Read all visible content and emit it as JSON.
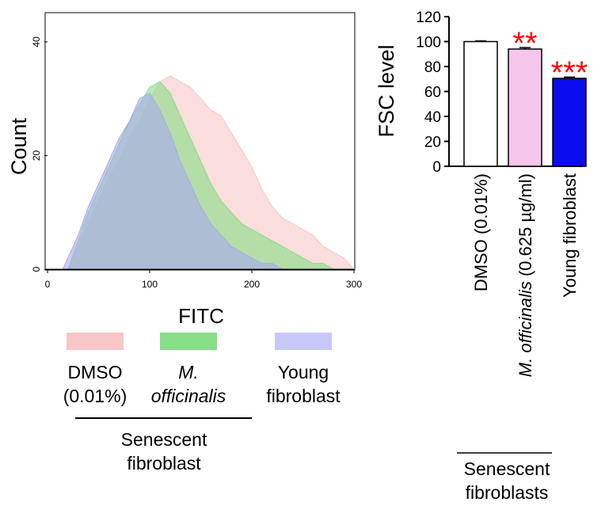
{
  "chart_data": [
    {
      "type": "area",
      "title": "",
      "xlabel": "FITC",
      "ylabel": "Count",
      "xlim": [
        0,
        300
      ],
      "ylim": [
        0,
        45
      ],
      "xticks": [
        "0",
        "100",
        "200",
        "300"
      ],
      "yticks": [
        "0",
        "20",
        "40"
      ],
      "series": [
        {
          "name": "DMSO (0.01%)",
          "color": "#f7c6c6",
          "x": [
            20,
            30,
            40,
            50,
            60,
            70,
            80,
            90,
            100,
            110,
            120,
            130,
            140,
            150,
            160,
            170,
            180,
            190,
            200,
            210,
            220,
            230,
            240,
            250,
            260,
            270,
            280,
            290,
            300
          ],
          "y": [
            0,
            4,
            8,
            12,
            16,
            19,
            23,
            26,
            30,
            33,
            34,
            33,
            32,
            30,
            28,
            27,
            24,
            21,
            18,
            14,
            11,
            9,
            8,
            7,
            6,
            4,
            3,
            2,
            0
          ]
        },
        {
          "name": "M. officinalis",
          "color": "#86de86",
          "x": [
            20,
            30,
            40,
            50,
            60,
            70,
            80,
            90,
            100,
            110,
            120,
            130,
            140,
            150,
            160,
            170,
            180,
            190,
            200,
            210,
            220,
            230,
            240,
            250,
            260,
            270,
            280,
            290,
            300
          ],
          "y": [
            0,
            5,
            10,
            14,
            18,
            22,
            26,
            29,
            32,
            33,
            31,
            27,
            23,
            19,
            15,
            12,
            10,
            8,
            7,
            6,
            5,
            4,
            3,
            2,
            1,
            1,
            0,
            0,
            0
          ]
        },
        {
          "name": "Young fibroblast",
          "color": "#a9a9f2",
          "x": [
            15,
            20,
            30,
            40,
            50,
            60,
            70,
            80,
            90,
            100,
            110,
            120,
            130,
            140,
            150,
            160,
            170,
            180,
            190,
            200,
            210,
            220,
            230
          ],
          "y": [
            0,
            2,
            6,
            11,
            15,
            19,
            23,
            26,
            30,
            31,
            28,
            24,
            19,
            15,
            11,
            8,
            6,
            4,
            3,
            2,
            1,
            1,
            0
          ]
        }
      ],
      "legend": {
        "entries": [
          {
            "lines": [
              "DMSO",
              "(0.01%)"
            ],
            "italic": false,
            "color": "#f7c6c6"
          },
          {
            "lines": [
              "M.",
              "officinalis"
            ],
            "italic": true,
            "color": "#86de86"
          },
          {
            "lines": [
              "Young",
              "fibroblast"
            ],
            "italic": false,
            "color": "#c8c8f8"
          }
        ],
        "group_label": [
          "Senescent",
          "fibroblast"
        ],
        "placement": "bottom"
      }
    },
    {
      "type": "bar",
      "title": "",
      "xlabel": "",
      "ylabel": "FSC level",
      "ylim": [
        0,
        120
      ],
      "yticks": [
        "0",
        "20",
        "40",
        "60",
        "80",
        "100",
        "120"
      ],
      "categories": [
        "DMSO (0.01%)",
        "M. officinalis (0.625 µg/ml)",
        "Young fibroblast"
      ],
      "category_parts": [
        [
          {
            "t": "DMSO (0.01%)",
            "i": false
          }
        ],
        [
          {
            "t": "M. officinalis",
            "i": true
          },
          {
            "t": " (0.625 µg/ml)",
            "i": false
          }
        ],
        [
          {
            "t": "Young fibroblast",
            "i": false
          }
        ]
      ],
      "values": [
        100,
        94,
        70.5
      ],
      "errors": [
        0.5,
        1.2,
        1.0
      ],
      "colors": [
        "#ffffff",
        "#f5c5ec",
        "#0c0cf0"
      ],
      "significance": [
        "",
        "**",
        "***"
      ],
      "significance_color": "#ff0000",
      "group_label": [
        "Senescent",
        "fibroblasts"
      ]
    }
  ]
}
